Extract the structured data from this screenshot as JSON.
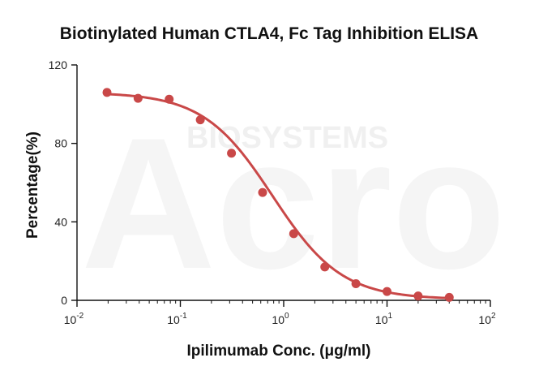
{
  "chart_data": {
    "type": "scatter",
    "title": "Biotinylated Human CTLA4, Fc Tag Inhibition ELISA",
    "xlabel": "Ipilimumab Conc. (μg/ml)",
    "ylabel": "Percentage(%)",
    "xscale": "log",
    "xlim": [
      0.01,
      100
    ],
    "ylim": [
      0,
      120
    ],
    "x_ticks": [
      {
        "value": 0.01,
        "base": "10",
        "exp": "-2"
      },
      {
        "value": 0.1,
        "base": "10",
        "exp": "-1"
      },
      {
        "value": 1,
        "base": "10",
        "exp": "0"
      },
      {
        "value": 10,
        "base": "10",
        "exp": "1"
      },
      {
        "value": 100,
        "base": "10",
        "exp": "2"
      }
    ],
    "y_ticks": [
      0,
      40,
      80,
      120
    ],
    "grid": false,
    "series": [
      {
        "name": "Ipilimumab",
        "color": "#c94848",
        "points": [
          {
            "x": 0.0195,
            "y": 106
          },
          {
            "x": 0.039,
            "y": 103
          },
          {
            "x": 0.078,
            "y": 102.5
          },
          {
            "x": 0.156,
            "y": 92
          },
          {
            "x": 0.3125,
            "y": 75
          },
          {
            "x": 0.625,
            "y": 55
          },
          {
            "x": 1.25,
            "y": 34
          },
          {
            "x": 2.5,
            "y": 17
          },
          {
            "x": 5,
            "y": 8.5
          },
          {
            "x": 10,
            "y": 4.5
          },
          {
            "x": 20,
            "y": 2.2
          },
          {
            "x": 40,
            "y": 1.5
          }
        ],
        "fit": {
          "model": "4PL",
          "top": 106,
          "bottom": 0.5,
          "ec50": 0.78,
          "hill": 1.3
        }
      }
    ],
    "watermark": {
      "brand": "Acro",
      "subtitle": "BIOSYSTEMS"
    }
  }
}
